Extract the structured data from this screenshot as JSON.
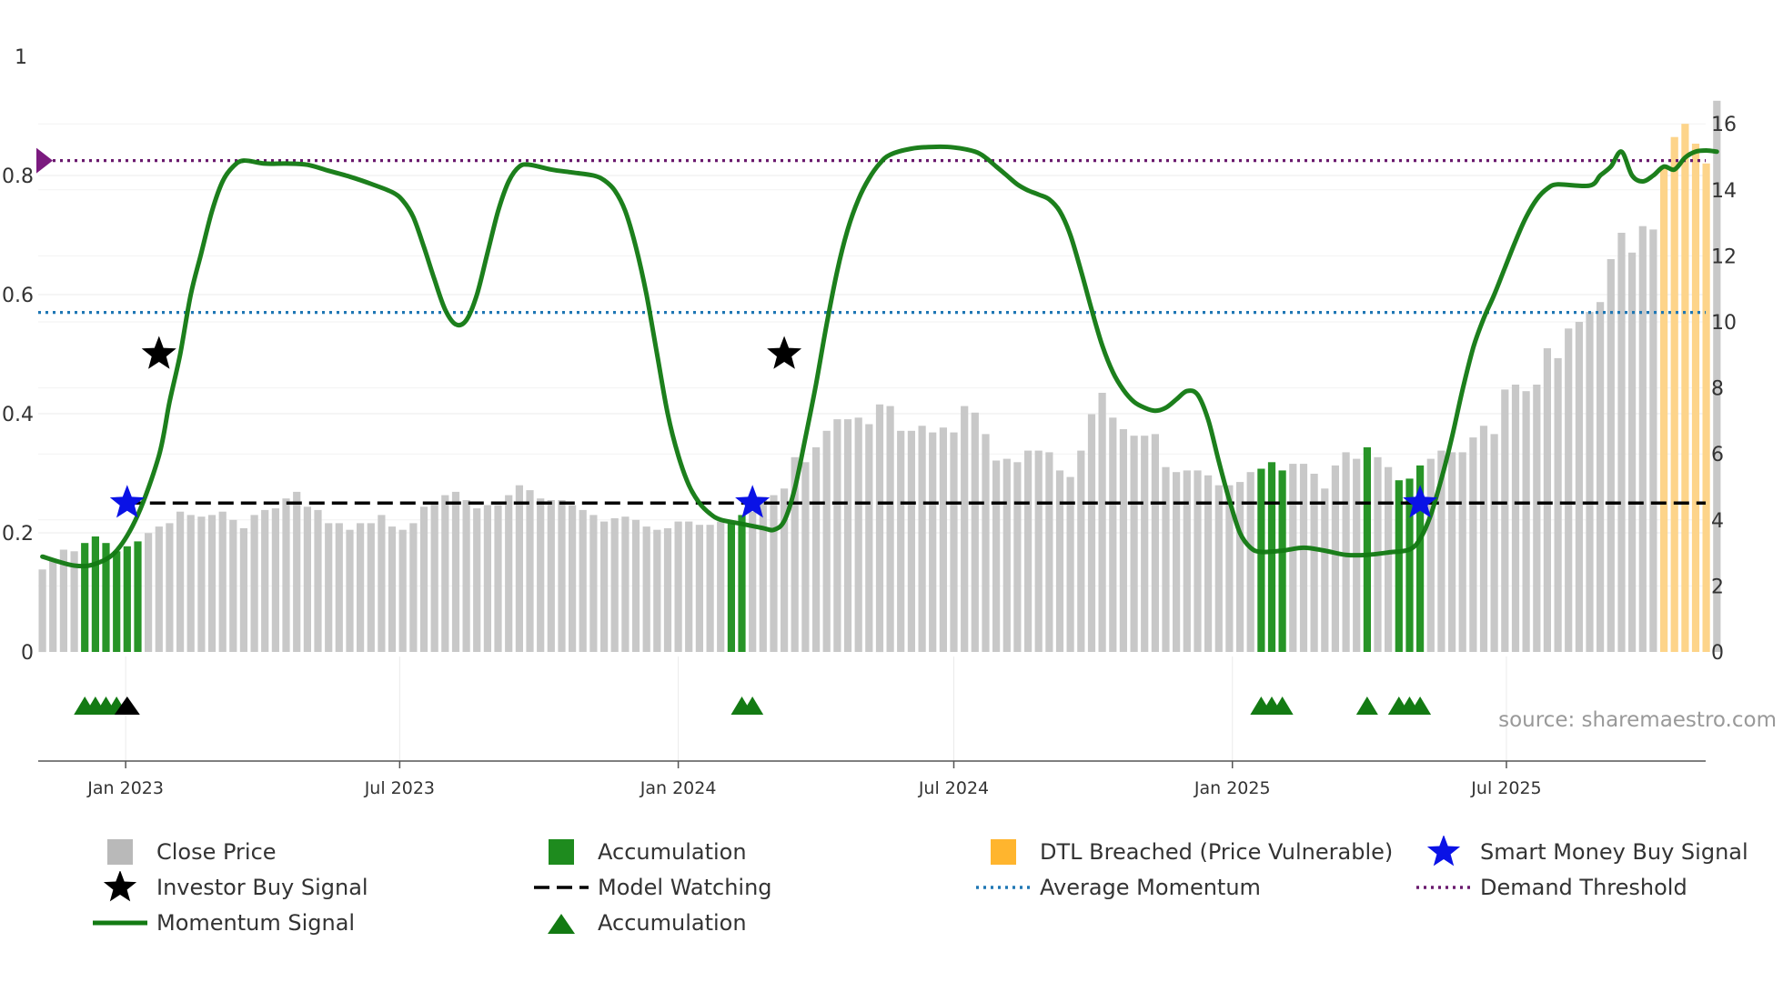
{
  "chart_data": {
    "type": "bar",
    "title": "",
    "source": "source: sharemaestro.com",
    "x_ticks": [
      "Jan 2023",
      "Jul 2023",
      "Jan 2024",
      "Jul 2024",
      "Jan 2025",
      "Jul 2025"
    ],
    "left_axis": {
      "ticks": [
        "0",
        "0.2",
        "0.4",
        "0.6",
        "0.8",
        "1"
      ],
      "ylim": [
        0,
        1
      ]
    },
    "right_axis": {
      "ticks": [
        "0",
        "2",
        "4",
        "6",
        "8",
        "10",
        "12",
        "14",
        "16"
      ],
      "ylim": [
        0,
        17.3
      ]
    },
    "start_date": "2022-11-07",
    "bar_interval_days": 7,
    "close_price": [
      2.5,
      2.8,
      3.1,
      3.05,
      3.3,
      3.5,
      3.3,
      3.05,
      3.2,
      3.35,
      3.6,
      3.8,
      3.9,
      4.25,
      4.15,
      4.1,
      4.15,
      4.25,
      4.0,
      3.75,
      4.15,
      4.3,
      4.35,
      4.65,
      4.85,
      4.4,
      4.3,
      3.9,
      3.9,
      3.7,
      3.9,
      3.9,
      4.15,
      3.8,
      3.7,
      3.9,
      4.4,
      4.55,
      4.75,
      4.85,
      4.6,
      4.35,
      4.45,
      4.45,
      4.75,
      5.05,
      4.9,
      4.65,
      4.6,
      4.6,
      4.45,
      4.3,
      4.15,
      3.95,
      4.05,
      4.1,
      4.0,
      3.8,
      3.7,
      3.75,
      3.95,
      3.95,
      3.85,
      3.85,
      3.95,
      3.9,
      4.15,
      4.25,
      4.7,
      4.75,
      4.95,
      5.9,
      5.75,
      6.2,
      6.7,
      7.05,
      7.05,
      7.1,
      6.9,
      7.5,
      7.45,
      6.7,
      6.7,
      6.85,
      6.65,
      6.8,
      6.65,
      7.45,
      7.25,
      6.6,
      5.8,
      5.85,
      5.75,
      6.1,
      6.1,
      6.05,
      5.5,
      5.3,
      6.1,
      7.2,
      7.85,
      7.1,
      6.75,
      6.55,
      6.55,
      6.6,
      5.6,
      5.45,
      5.5,
      5.5,
      5.35,
      5.05,
      5.05,
      5.15,
      5.45,
      5.55,
      5.75,
      5.5,
      5.7,
      5.7,
      5.4,
      4.95,
      5.65,
      6.05,
      5.85,
      6.2,
      5.9,
      5.6,
      5.2,
      5.25,
      5.65,
      5.85,
      6.1,
      6.05,
      6.05,
      6.5,
      6.85,
      6.6,
      7.95,
      8.1,
      7.9,
      8.1,
      9.2,
      8.9,
      9.8,
      10.0,
      10.3,
      10.6,
      11.9,
      12.7,
      12.1,
      12.9,
      12.8,
      14.7,
      15.6,
      16.0,
      15.4,
      14.8,
      16.7
    ],
    "momentum_signal": [
      [
        0,
        0.16
      ],
      [
        3,
        0.145
      ],
      [
        5,
        0.148
      ],
      [
        7,
        0.17
      ],
      [
        9,
        0.23
      ],
      [
        11,
        0.33
      ],
      [
        12,
        0.42
      ],
      [
        13,
        0.5
      ],
      [
        14,
        0.6
      ],
      [
        15,
        0.67
      ],
      [
        16,
        0.74
      ],
      [
        17,
        0.79
      ],
      [
        18,
        0.815
      ],
      [
        19,
        0.825
      ],
      [
        21,
        0.82
      ],
      [
        23,
        0.82
      ],
      [
        25,
        0.818
      ],
      [
        27,
        0.808
      ],
      [
        29,
        0.798
      ],
      [
        31,
        0.786
      ],
      [
        33,
        0.772
      ],
      [
        34,
        0.758
      ],
      [
        35,
        0.73
      ],
      [
        36,
        0.68
      ],
      [
        37,
        0.625
      ],
      [
        38,
        0.575
      ],
      [
        39,
        0.55
      ],
      [
        40,
        0.557
      ],
      [
        41,
        0.6
      ],
      [
        42,
        0.67
      ],
      [
        43,
        0.74
      ],
      [
        44,
        0.79
      ],
      [
        45,
        0.815
      ],
      [
        46,
        0.818
      ],
      [
        48,
        0.81
      ],
      [
        50,
        0.805
      ],
      [
        52,
        0.8
      ],
      [
        53,
        0.792
      ],
      [
        54,
        0.775
      ],
      [
        55,
        0.74
      ],
      [
        56,
        0.68
      ],
      [
        57,
        0.6
      ],
      [
        58,
        0.5
      ],
      [
        59,
        0.4
      ],
      [
        60,
        0.33
      ],
      [
        61,
        0.28
      ],
      [
        62,
        0.25
      ],
      [
        63,
        0.232
      ],
      [
        64,
        0.222
      ],
      [
        66,
        0.215
      ],
      [
        68,
        0.208
      ],
      [
        69,
        0.205
      ],
      [
        70,
        0.22
      ],
      [
        71,
        0.275
      ],
      [
        72,
        0.36
      ],
      [
        73,
        0.45
      ],
      [
        74,
        0.55
      ],
      [
        75,
        0.64
      ],
      [
        76,
        0.71
      ],
      [
        77,
        0.76
      ],
      [
        78,
        0.795
      ],
      [
        79,
        0.82
      ],
      [
        80,
        0.835
      ],
      [
        82,
        0.845
      ],
      [
        84,
        0.848
      ],
      [
        86,
        0.847
      ],
      [
        88,
        0.84
      ],
      [
        89,
        0.83
      ],
      [
        90,
        0.815
      ],
      [
        91,
        0.8
      ],
      [
        92,
        0.785
      ],
      [
        93,
        0.775
      ],
      [
        94,
        0.768
      ],
      [
        95,
        0.76
      ],
      [
        96,
        0.74
      ],
      [
        97,
        0.7
      ],
      [
        98,
        0.64
      ],
      [
        99,
        0.575
      ],
      [
        100,
        0.515
      ],
      [
        101,
        0.47
      ],
      [
        102,
        0.44
      ],
      [
        103,
        0.42
      ],
      [
        104,
        0.41
      ],
      [
        105,
        0.405
      ],
      [
        106,
        0.41
      ],
      [
        107,
        0.424
      ],
      [
        108,
        0.438
      ],
      [
        109,
        0.432
      ],
      [
        110,
        0.39
      ],
      [
        111,
        0.32
      ],
      [
        112,
        0.255
      ],
      [
        113,
        0.2
      ],
      [
        114,
        0.175
      ],
      [
        115,
        0.168
      ],
      [
        117,
        0.17
      ],
      [
        119,
        0.175
      ],
      [
        121,
        0.17
      ],
      [
        123,
        0.163
      ],
      [
        125,
        0.163
      ],
      [
        127,
        0.167
      ],
      [
        129,
        0.172
      ],
      [
        130,
        0.19
      ],
      [
        131,
        0.23
      ],
      [
        132,
        0.29
      ],
      [
        133,
        0.36
      ],
      [
        134,
        0.44
      ],
      [
        135,
        0.51
      ],
      [
        136,
        0.56
      ],
      [
        137,
        0.6
      ],
      [
        138,
        0.645
      ],
      [
        139,
        0.69
      ],
      [
        140,
        0.73
      ],
      [
        141,
        0.76
      ],
      [
        142,
        0.778
      ],
      [
        143,
        0.785
      ],
      [
        146,
        0.783
      ],
      [
        147,
        0.8
      ],
      [
        148,
        0.815
      ],
      [
        149,
        0.84
      ],
      [
        150,
        0.8
      ],
      [
        151,
        0.79
      ],
      [
        152,
        0.8
      ],
      [
        153,
        0.815
      ],
      [
        154,
        0.81
      ],
      [
        155,
        0.83
      ],
      [
        156,
        0.84
      ],
      [
        157,
        0.842
      ],
      [
        158,
        0.84
      ]
    ],
    "accumulation_bars": [
      4,
      5,
      6,
      7,
      8,
      9,
      65,
      66,
      115,
      116,
      117,
      125,
      128,
      129,
      130
    ],
    "dtl_breached_bars": [
      153,
      154,
      155,
      156,
      157
    ],
    "investor_buy_signals": [
      [
        11,
        0.5
      ],
      [
        70,
        0.5
      ]
    ],
    "smart_money_buy_signals": [
      [
        8,
        0.25
      ],
      [
        67,
        0.25
      ],
      [
        130,
        0.25
      ]
    ],
    "model_watching_level": 0.25,
    "model_watching_start": 8,
    "average_momentum": 0.57,
    "demand_threshold": 0.825,
    "accumulation_markers": [
      4,
      5,
      6,
      7,
      66,
      67,
      115,
      116,
      117,
      125,
      128,
      129,
      130
    ],
    "investor_markers": [
      8
    ],
    "legend": [
      {
        "label": "Close Price",
        "kind": "square",
        "color": "#b9b9b9"
      },
      {
        "label": "Accumulation",
        "kind": "square",
        "color": "#1e8b1e"
      },
      {
        "label": "DTL Breached (Price Vulnerable)",
        "kind": "square",
        "color": "#ffb52e"
      },
      {
        "label": "Smart Money Buy Signal",
        "kind": "star",
        "color": "#0a12e6"
      },
      {
        "label": "Investor Buy Signal",
        "kind": "star",
        "color": "#000000"
      },
      {
        "label": "Model Watching",
        "kind": "dash",
        "color": "#000000"
      },
      {
        "label": "Average Momentum",
        "kind": "dot",
        "color": "#1f77b4"
      },
      {
        "label": "Demand Threshold",
        "kind": "dot",
        "color": "#6a1a6e"
      },
      {
        "label": "Momentum Signal",
        "kind": "line",
        "color": "#137a13"
      },
      {
        "label": "Accumulation",
        "kind": "triangle",
        "color": "#137a13"
      }
    ],
    "colors": {
      "close": "#c8c8c8",
      "accum": "#279427",
      "dtl": "#fdd48a",
      "momentum": "#137a13",
      "avg": "#1f77b4",
      "threshold": "#6a1a6e",
      "watching": "#000000",
      "smart_star": "#0a12e6",
      "investor_star": "#000000",
      "grid": "#ebebeb",
      "axis": "#666666"
    }
  }
}
